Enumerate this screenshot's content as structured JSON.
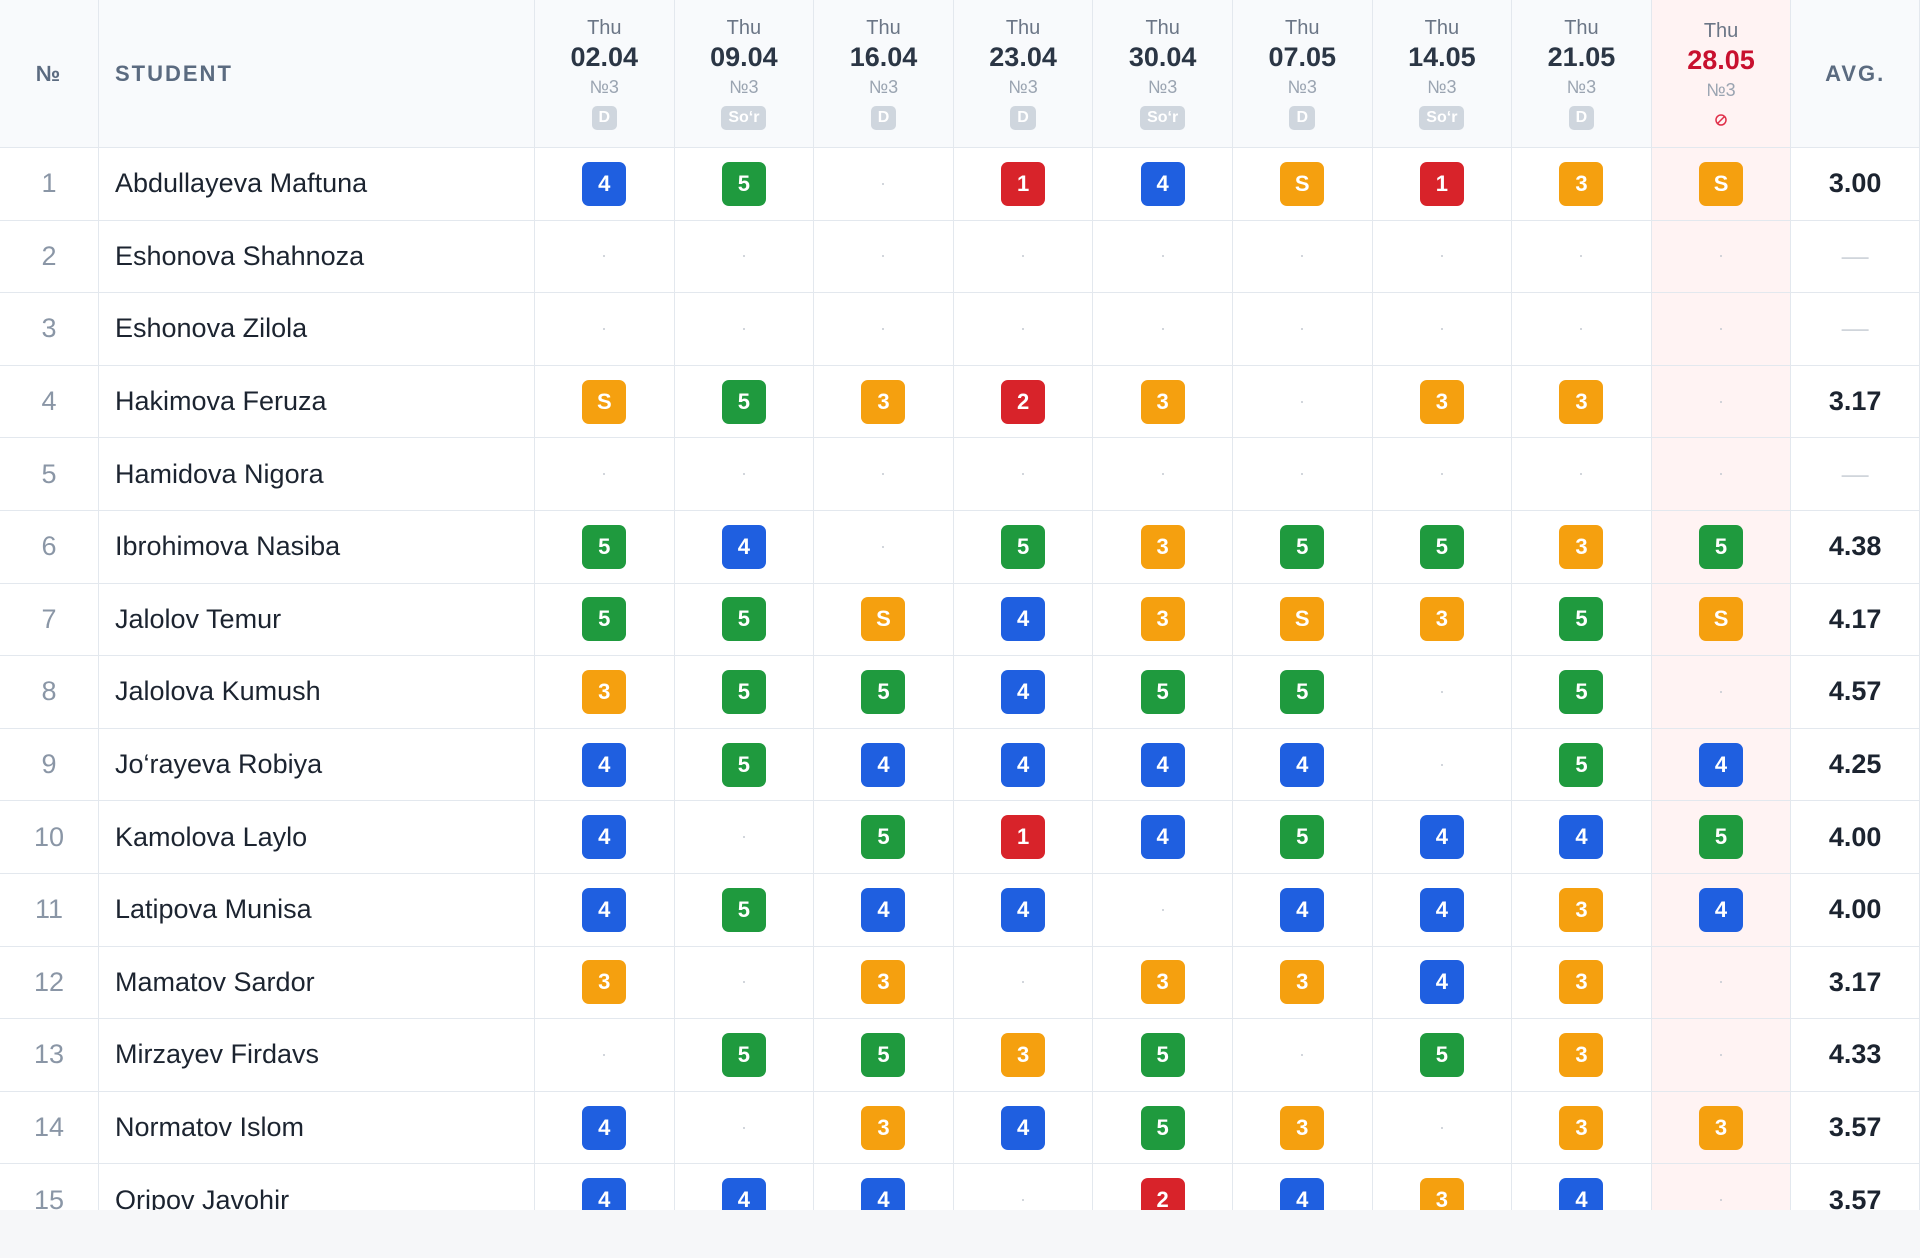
{
  "header": {
    "number_label": "№",
    "student_label": "STUDENT",
    "average_label": "AVG.",
    "columns": [
      {
        "day": "Thu",
        "date": "02.04",
        "lesson": "№3",
        "badge": "D"
      },
      {
        "day": "Thu",
        "date": "09.04",
        "lesson": "№3",
        "badge": "So‘r"
      },
      {
        "day": "Thu",
        "date": "16.04",
        "lesson": "№3",
        "badge": "D"
      },
      {
        "day": "Thu",
        "date": "23.04",
        "lesson": "№3",
        "badge": "D"
      },
      {
        "day": "Thu",
        "date": "30.04",
        "lesson": "№3",
        "badge": "So‘r"
      },
      {
        "day": "Thu",
        "date": "07.05",
        "lesson": "№3",
        "badge": "D"
      },
      {
        "day": "Thu",
        "date": "14.05",
        "lesson": "№3",
        "badge": "So‘r"
      },
      {
        "day": "Thu",
        "date": "21.05",
        "lesson": "№3",
        "badge": "D"
      },
      {
        "day": "Thu",
        "date": "28.05",
        "lesson": "№3"
      }
    ]
  },
  "rows": [
    {
      "number": 1,
      "name": "Abdullayeva Maftuna",
      "grades": [
        4,
        5,
        null,
        1,
        4,
        "S",
        1,
        3,
        "S"
      ],
      "average": "3.00"
    },
    {
      "number": 2,
      "name": "Eshonova Shahnoza",
      "grades": [
        null,
        null,
        null,
        null,
        null,
        null,
        null,
        null,
        null
      ],
      "average": "—"
    },
    {
      "number": 3,
      "name": "Eshonova Zilola",
      "grades": [
        null,
        null,
        null,
        null,
        null,
        null,
        null,
        null,
        null
      ],
      "average": "—"
    },
    {
      "number": 4,
      "name": "Hakimova Feruza",
      "grades": [
        "S",
        5,
        3,
        2,
        3,
        null,
        3,
        3,
        null
      ],
      "average": "3.17"
    },
    {
      "number": 5,
      "name": "Hamidova Nigora",
      "grades": [
        null,
        null,
        null,
        null,
        null,
        null,
        null,
        null,
        null
      ],
      "average": "—"
    },
    {
      "number": 6,
      "name": "Ibrohimova Nasiba",
      "grades": [
        5,
        4,
        null,
        5,
        3,
        5,
        5,
        3,
        5
      ],
      "average": "4.38"
    },
    {
      "number": 7,
      "name": "Jalolov Temur",
      "grades": [
        5,
        5,
        "S",
        4,
        3,
        "S",
        3,
        5,
        "S"
      ],
      "average": "4.17"
    },
    {
      "number": 8,
      "name": "Jalolova Kumush",
      "grades": [
        3,
        5,
        5,
        4,
        5,
        5,
        null,
        5,
        null
      ],
      "average": "4.57"
    },
    {
      "number": 9,
      "name": "Jo‘rayeva Robiya",
      "grades": [
        4,
        5,
        4,
        4,
        4,
        4,
        null,
        5,
        4
      ],
      "average": "4.25"
    },
    {
      "number": 10,
      "name": "Kamolova Laylo",
      "grades": [
        4,
        null,
        5,
        1,
        4,
        5,
        4,
        4,
        5
      ],
      "average": "4.00"
    },
    {
      "number": 11,
      "name": "Latipova Munisa",
      "grades": [
        4,
        5,
        4,
        4,
        null,
        4,
        4,
        3,
        4
      ],
      "average": "4.00"
    },
    {
      "number": 12,
      "name": "Mamatov Sardor",
      "grades": [
        3,
        null,
        3,
        null,
        3,
        3,
        4,
        3,
        null
      ],
      "average": "3.17"
    },
    {
      "number": 13,
      "name": "Mirzayev Firdavs",
      "grades": [
        null,
        5,
        5,
        3,
        5,
        null,
        5,
        3,
        null
      ],
      "average": "4.33"
    },
    {
      "number": 14,
      "name": "Normatov Islom",
      "grades": [
        4,
        null,
        3,
        4,
        5,
        3,
        null,
        3,
        3
      ],
      "average": "3.57"
    },
    {
      "number": 15,
      "name": "Oripov Javohir",
      "grades": [
        4,
        4,
        4,
        null,
        2,
        4,
        3,
        4,
        null
      ],
      "average": "3.57"
    }
  ]
}
